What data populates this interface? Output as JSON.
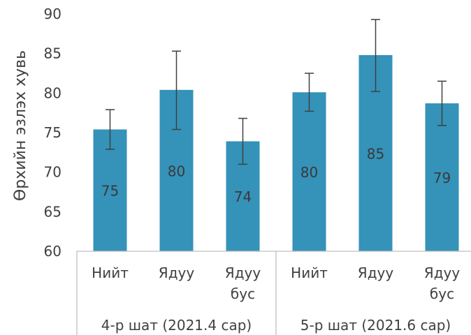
{
  "chart_data": {
    "type": "bar",
    "ylabel": "Өрхийн эзлэх хувь",
    "ylim": [
      60,
      90
    ],
    "yticks": [
      60,
      65,
      70,
      75,
      80,
      85,
      90
    ],
    "grid": false,
    "bar_color": "#3592b9",
    "error_bar_color": "#404040",
    "groups": [
      {
        "label": "4-р шат (2021.4 сар)",
        "categories": [
          [
            "Нийт"
          ],
          [
            "Ядуу"
          ],
          [
            "Ядуу",
            "бус"
          ]
        ],
        "values": [
          75.4,
          80.4,
          73.9
        ],
        "error_low": [
          72.9,
          75.4,
          71.0
        ],
        "error_high": [
          77.9,
          85.3,
          76.8
        ],
        "data_labels": [
          "75",
          "80",
          "74"
        ]
      },
      {
        "label": "5-р шат (2021.6 сар)",
        "categories": [
          [
            "Нийт"
          ],
          [
            "Ядуу"
          ],
          [
            "Ядуу",
            "бус"
          ]
        ],
        "values": [
          80.1,
          84.8,
          78.7
        ],
        "error_low": [
          77.7,
          80.2,
          75.9
        ],
        "error_high": [
          82.5,
          89.3,
          81.5
        ],
        "data_labels": [
          "80",
          "85",
          "79"
        ]
      }
    ]
  }
}
